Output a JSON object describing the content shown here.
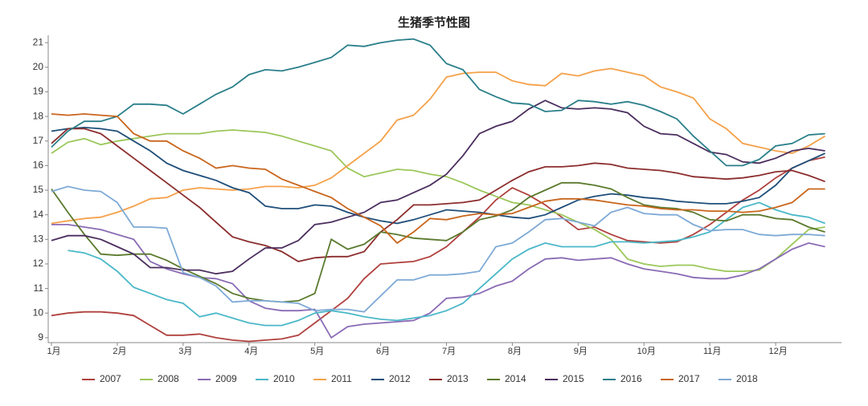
{
  "chart_data": {
    "type": "line",
    "title": "生猪季节性图",
    "categories": [
      "1月",
      null,
      null,
      null,
      "2月",
      null,
      null,
      null,
      "3月",
      null,
      null,
      null,
      "4月",
      null,
      null,
      null,
      "5月",
      null,
      null,
      null,
      "6月",
      null,
      null,
      null,
      "7月",
      null,
      null,
      null,
      "8月",
      null,
      null,
      null,
      "9月",
      null,
      null,
      null,
      "10月",
      null,
      null,
      null,
      "11月",
      null,
      null,
      null,
      "12月",
      null,
      null,
      null
    ],
    "ylim": [
      8.8,
      21.3
    ],
    "yticks": [
      9,
      10,
      11,
      12,
      13,
      14,
      15,
      16,
      17,
      18,
      19,
      20,
      21
    ],
    "grid": false,
    "legend": "bottom",
    "series": [
      {
        "name": "2007",
        "color": "#b0413e",
        "values": [
          9.9,
          10.0,
          10.05,
          10.05,
          10.0,
          9.9,
          9.5,
          9.1,
          9.1,
          9.15,
          9.0,
          8.9,
          8.85,
          8.9,
          8.95,
          9.1,
          9.6,
          10.1,
          10.6,
          11.4,
          12.0,
          12.05,
          12.1,
          12.3,
          12.7,
          13.3,
          13.9,
          14.6,
          15.1,
          14.8,
          14.4,
          13.9,
          13.4,
          13.5,
          13.2,
          12.95,
          12.9,
          12.85,
          12.9,
          13.2,
          13.6,
          14.1,
          14.6,
          15.0,
          15.5,
          15.9,
          16.2,
          16.35
        ]
      },
      {
        "name": "2008",
        "color": "#9bc75a",
        "values": [
          16.5,
          16.95,
          17.1,
          16.85,
          17.0,
          17.1,
          17.2,
          17.3,
          17.3,
          17.3,
          17.4,
          17.45,
          17.4,
          17.35,
          17.2,
          17.0,
          16.8,
          16.6,
          15.9,
          15.55,
          15.7,
          15.85,
          15.8,
          15.65,
          15.55,
          15.3,
          15.0,
          14.75,
          14.5,
          14.4,
          14.2,
          14.0,
          13.7,
          13.4,
          13.0,
          12.2,
          12.0,
          11.9,
          11.95,
          11.95,
          11.8,
          11.7,
          11.7,
          11.75,
          12.2,
          12.8,
          13.4,
          13.5
        ]
      },
      {
        "name": "2009",
        "color": "#8a6bb5",
        "values": [
          13.6,
          13.6,
          13.5,
          13.4,
          13.2,
          13.0,
          12.1,
          11.8,
          11.6,
          11.45,
          11.4,
          11.2,
          10.5,
          10.2,
          10.1,
          10.1,
          10.15,
          9.0,
          9.45,
          9.55,
          9.6,
          9.65,
          9.7,
          10.0,
          10.6,
          10.65,
          10.8,
          11.1,
          11.3,
          11.8,
          12.2,
          12.25,
          12.15,
          12.2,
          12.25,
          12.0,
          11.8,
          11.7,
          11.6,
          11.45,
          11.4,
          11.4,
          11.55,
          11.8,
          12.2,
          12.6,
          12.85,
          12.7
        ]
      },
      {
        "name": "2010",
        "color": "#4ab8c8",
        "values": [
          null,
          12.55,
          12.45,
          12.2,
          11.7,
          11.05,
          10.8,
          10.55,
          10.4,
          9.85,
          10.0,
          9.8,
          9.6,
          9.5,
          9.5,
          9.7,
          10.0,
          10.1,
          10.0,
          9.85,
          9.75,
          9.7,
          9.8,
          9.9,
          10.1,
          10.4,
          11.0,
          11.6,
          12.2,
          12.6,
          12.85,
          12.7,
          12.7,
          12.7,
          12.9,
          12.9,
          12.85,
          12.9,
          12.95,
          13.1,
          13.3,
          13.8,
          14.3,
          14.5,
          14.2,
          14.0,
          13.9,
          13.65
        ]
      },
      {
        "name": "2011",
        "color": "#f5a14a",
        "values": [
          13.65,
          13.75,
          13.85,
          13.9,
          14.1,
          14.35,
          14.65,
          14.7,
          15.0,
          15.1,
          15.05,
          15.0,
          15.05,
          15.15,
          15.15,
          15.1,
          15.2,
          15.5,
          16.0,
          16.5,
          17.0,
          17.85,
          18.05,
          18.7,
          19.6,
          19.75,
          19.8,
          19.8,
          19.45,
          19.3,
          19.25,
          19.75,
          19.65,
          19.85,
          19.95,
          19.8,
          19.65,
          19.2,
          19.0,
          18.75,
          17.9,
          17.5,
          16.9,
          16.75,
          16.6,
          16.5,
          16.8,
          17.2
        ]
      },
      {
        "name": "2012",
        "color": "#1f4e79",
        "values": [
          17.4,
          17.5,
          17.55,
          17.5,
          17.4,
          17.0,
          16.6,
          16.1,
          15.8,
          15.6,
          15.4,
          15.1,
          14.9,
          14.35,
          14.25,
          14.25,
          14.4,
          14.35,
          14.1,
          13.9,
          13.75,
          13.65,
          13.8,
          14.0,
          14.2,
          14.15,
          14.1,
          14.0,
          13.9,
          13.85,
          14.0,
          14.3,
          14.6,
          14.75,
          14.85,
          14.8,
          14.7,
          14.65,
          14.55,
          14.5,
          14.45,
          14.45,
          14.55,
          14.7,
          15.2,
          15.9,
          16.2,
          16.5
        ]
      },
      {
        "name": "2013",
        "color": "#8c2d2d",
        "values": [
          16.9,
          17.5,
          17.5,
          17.3,
          16.8,
          16.3,
          15.8,
          15.3,
          14.8,
          14.3,
          13.7,
          13.1,
          12.9,
          12.75,
          12.5,
          12.1,
          12.25,
          12.3,
          12.3,
          12.5,
          13.3,
          13.8,
          14.4,
          14.4,
          14.45,
          14.5,
          14.6,
          15.0,
          15.4,
          15.75,
          15.95,
          15.95,
          16.0,
          16.1,
          16.05,
          15.9,
          15.85,
          15.8,
          15.7,
          15.55,
          15.5,
          15.45,
          15.5,
          15.6,
          15.75,
          15.8,
          15.6,
          15.35
        ]
      },
      {
        "name": "2014",
        "color": "#5b7a2e",
        "values": [
          15.05,
          14.1,
          13.2,
          12.4,
          12.35,
          12.4,
          12.4,
          12.15,
          11.8,
          11.5,
          11.2,
          10.8,
          10.6,
          10.5,
          10.45,
          10.5,
          10.8,
          13.0,
          12.6,
          12.8,
          13.3,
          13.2,
          13.05,
          13.0,
          12.95,
          13.3,
          13.8,
          13.95,
          14.2,
          14.7,
          15.0,
          15.3,
          15.3,
          15.2,
          15.05,
          14.7,
          14.4,
          14.3,
          14.25,
          14.1,
          13.8,
          13.75,
          14.0,
          14.0,
          13.85,
          13.8,
          13.5,
          13.3
        ]
      },
      {
        "name": "2015",
        "color": "#4b2e5e",
        "values": [
          12.95,
          13.15,
          13.15,
          13.0,
          12.7,
          12.4,
          11.85,
          11.85,
          11.75,
          11.75,
          11.6,
          11.7,
          12.2,
          12.65,
          12.65,
          12.95,
          13.6,
          13.7,
          13.9,
          14.1,
          14.5,
          14.6,
          14.9,
          15.2,
          15.65,
          16.4,
          17.3,
          17.6,
          17.8,
          18.3,
          18.65,
          18.35,
          18.3,
          18.35,
          18.3,
          18.15,
          17.6,
          17.3,
          17.25,
          16.9,
          16.55,
          16.45,
          16.15,
          16.1,
          16.3,
          16.6,
          16.7,
          16.6
        ]
      },
      {
        "name": "2016",
        "color": "#2a7f8a",
        "values": [
          16.75,
          17.4,
          17.8,
          17.8,
          18.0,
          18.5,
          18.5,
          18.45,
          18.1,
          18.5,
          18.9,
          19.2,
          19.7,
          19.9,
          19.85,
          20.0,
          20.2,
          20.4,
          20.9,
          20.85,
          21.0,
          21.1,
          21.15,
          20.9,
          20.15,
          19.9,
          19.1,
          18.8,
          18.55,
          18.5,
          18.2,
          18.25,
          18.65,
          18.6,
          18.5,
          18.6,
          18.45,
          18.2,
          17.9,
          17.2,
          16.6,
          16.0,
          16.0,
          16.25,
          16.8,
          16.9,
          17.25,
          17.3
        ]
      },
      {
        "name": "2017",
        "color": "#c9651c",
        "values": [
          18.1,
          18.05,
          18.1,
          18.05,
          18.0,
          17.3,
          17.0,
          17.0,
          16.6,
          16.3,
          15.9,
          16.0,
          15.9,
          15.85,
          15.45,
          15.2,
          14.95,
          14.7,
          14.25,
          13.9,
          13.55,
          12.85,
          13.3,
          13.85,
          13.8,
          13.95,
          14.05,
          14.0,
          14.05,
          14.3,
          14.55,
          14.65,
          14.65,
          14.6,
          14.5,
          14.4,
          14.35,
          14.25,
          14.2,
          14.2,
          14.15,
          14.15,
          14.1,
          14.15,
          14.3,
          14.5,
          15.05,
          15.05
        ]
      },
      {
        "name": "2018",
        "color": "#7eaad6",
        "values": [
          14.95,
          15.15,
          15.0,
          14.95,
          14.5,
          13.5,
          13.5,
          13.45,
          11.65,
          11.45,
          11.1,
          10.45,
          10.5,
          10.5,
          10.45,
          10.4,
          10.1,
          10.15,
          10.15,
          10.05,
          10.7,
          11.35,
          11.35,
          11.55,
          11.55,
          11.6,
          11.7,
          12.7,
          12.85,
          13.3,
          13.8,
          13.85,
          13.7,
          13.55,
          14.1,
          14.3,
          14.05,
          14.0,
          14.0,
          13.6,
          13.35,
          13.4,
          13.4,
          13.2,
          13.15,
          13.2,
          13.2,
          13.15
        ]
      }
    ]
  }
}
